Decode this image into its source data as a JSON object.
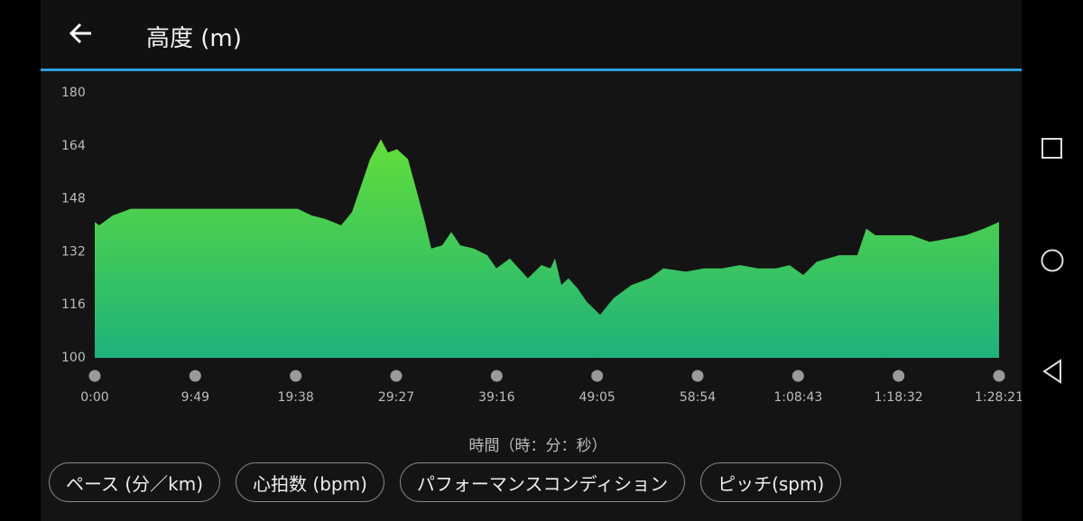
{
  "header": {
    "title": "高度 (m)"
  },
  "chart_data": {
    "type": "area",
    "x_label": "時間（時：分：秒）",
    "x": [
      0,
      26,
      106,
      212,
      503,
      820,
      1190,
      1270,
      1349,
      1444,
      1508,
      1561,
      1614,
      1677,
      1719,
      1772,
      1836,
      1889,
      1931,
      1973,
      2037,
      2090,
      2142,
      2222,
      2301,
      2354,
      2433,
      2486,
      2539,
      2618,
      2671,
      2698,
      2735,
      2777,
      2830,
      2883,
      2962,
      3041,
      3147,
      3253,
      3333,
      3465,
      3571,
      3676,
      3782,
      3888,
      3994,
      4073,
      4153,
      4232,
      4364,
      4470,
      4523,
      4576,
      4682,
      4788,
      4894,
      5000,
      5105,
      5211,
      5301
    ],
    "values": [
      141,
      140,
      143,
      145,
      145,
      145,
      145,
      143,
      142,
      140,
      144,
      152,
      160,
      166,
      162,
      163,
      160,
      150,
      142,
      133,
      134,
      138,
      134,
      133,
      131,
      127,
      130,
      127,
      124,
      128,
      127,
      130,
      122,
      124,
      121,
      117,
      113,
      118,
      122,
      124,
      127,
      126,
      127,
      127,
      128,
      127,
      127,
      128,
      125,
      129,
      131,
      131,
      139,
      137,
      137,
      137,
      135,
      136,
      137,
      139,
      141
    ],
    "xlim": [
      0,
      5301
    ],
    "xticks": [
      {
        "value": 0,
        "label": "0:00"
      },
      {
        "value": 589,
        "label": "9:49"
      },
      {
        "value": 1178,
        "label": "19:38"
      },
      {
        "value": 1767,
        "label": "29:27"
      },
      {
        "value": 2356,
        "label": "39:16"
      },
      {
        "value": 2945,
        "label": "49:05"
      },
      {
        "value": 3534,
        "label": "58:54"
      },
      {
        "value": 4123,
        "label": "1:08:43"
      },
      {
        "value": 4712,
        "label": "1:18:32"
      },
      {
        "value": 5301,
        "label": "1:28:21"
      }
    ],
    "ylim": [
      100,
      180
    ],
    "yticks": [
      100,
      116,
      132,
      148,
      164,
      180
    ],
    "gradient": [
      "#62de3a",
      "#1eb27b"
    ]
  },
  "buttons": [
    "ペース (分／km)",
    "心拍数 (bpm)",
    "パフォーマンスコンディション",
    "ピッチ(spm)"
  ]
}
